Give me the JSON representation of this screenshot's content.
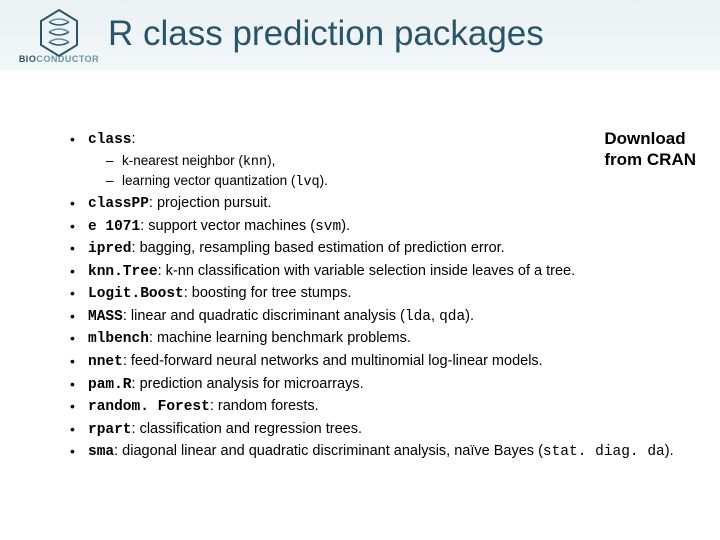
{
  "logo": {
    "line1": "BIO",
    "line2": "CONDUCTOR"
  },
  "title": "R class prediction packages",
  "callout": {
    "l1": "Download",
    "l2": "from CRAN"
  },
  "items": [
    {
      "pkg": "class",
      "desc": ":",
      "sub": [
        {
          "text": "k-nearest neighbor (",
          "code": "knn",
          "tail": "),"
        },
        {
          "text": "learning vector quantization (",
          "code": "lvq",
          "tail": ")."
        }
      ]
    },
    {
      "pkg": "classPP",
      "desc": ": projection pursuit."
    },
    {
      "pkg": "e 1071",
      "desc": ": support vector machines (",
      "code": "svm",
      "tail": ")."
    },
    {
      "pkg": "ipred",
      "desc": ": bagging, resampling based estimation of prediction error."
    },
    {
      "pkg": "knn.Tree",
      "desc": ": k-nn classification with variable selection inside leaves of a tree."
    },
    {
      "pkg": "Logit.Boost",
      "desc": ": boosting for tree stumps."
    },
    {
      "pkg": "MASS",
      "desc": ": linear and quadratic discriminant analysis (",
      "code": "lda",
      "mid": ", ",
      "code2": "qda",
      "tail": ")."
    },
    {
      "pkg": "mlbench",
      "desc": ": machine learning benchmark problems."
    },
    {
      "pkg": "nnet",
      "desc": ": feed-forward neural networks and multinomial log-linear models."
    },
    {
      "pkg": "pam.R",
      "desc": ": prediction analysis for microarrays."
    },
    {
      "pkg": "random. Forest",
      "desc": ": random forests."
    },
    {
      "pkg": "rpart",
      "desc": ": classification and regression trees."
    },
    {
      "pkg": "sma",
      "desc": ": diagonal linear and quadratic discriminant analysis, naïve Bayes (",
      "code": "stat. diag. da",
      "tail": ")."
    }
  ]
}
